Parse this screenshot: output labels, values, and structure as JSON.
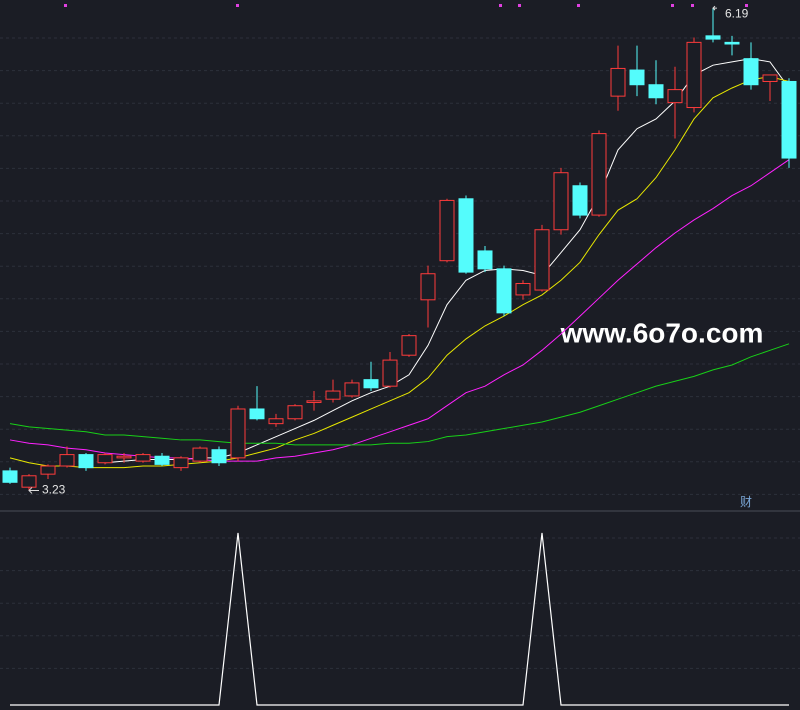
{
  "chart_data": {
    "type": "candlestick",
    "up_color": "#ff3b3b",
    "down_color": "#54fcfc",
    "ylim": [
      3.11,
      6.24
    ],
    "open": [
      3.35,
      3.25,
      3.33,
      3.38,
      3.45,
      3.4,
      3.43,
      3.41,
      3.44,
      3.37,
      3.41,
      3.48,
      3.43,
      3.73,
      3.64,
      3.67,
      3.77,
      3.79,
      3.81,
      3.91,
      3.87,
      4.06,
      4.4,
      4.64,
      5.02,
      4.7,
      4.59,
      4.43,
      4.46,
      4.83,
      5.1,
      4.92,
      5.65,
      5.81,
      5.72,
      5.61,
      5.58,
      6.02,
      5.98,
      5.88,
      5.74,
      5.74
    ],
    "high": [
      3.37,
      3.33,
      3.39,
      3.5,
      3.46,
      3.46,
      3.46,
      3.46,
      3.46,
      3.44,
      3.5,
      3.5,
      3.75,
      3.87,
      3.7,
      3.76,
      3.84,
      3.91,
      3.91,
      4.02,
      4.08,
      4.19,
      4.61,
      5.02,
      5.04,
      4.73,
      4.61,
      4.52,
      4.86,
      5.21,
      5.12,
      5.44,
      5.96,
      5.96,
      5.87,
      5.83,
      6.01,
      6.19,
      6.02,
      5.98,
      5.78,
      5.76
    ],
    "low": [
      3.27,
      3.23,
      3.3,
      3.37,
      3.35,
      3.39,
      3.4,
      3.4,
      3.38,
      3.35,
      3.4,
      3.38,
      3.41,
      3.66,
      3.62,
      3.66,
      3.72,
      3.77,
      3.8,
      3.84,
      3.86,
      4.05,
      4.23,
      4.63,
      4.56,
      4.57,
      4.3,
      4.4,
      4.45,
      4.8,
      4.9,
      4.91,
      5.56,
      5.65,
      5.6,
      5.39,
      5.55,
      5.98,
      5.9,
      5.69,
      5.62,
      5.21
    ],
    "close": [
      3.28,
      3.32,
      3.38,
      3.45,
      3.37,
      3.45,
      3.44,
      3.45,
      3.39,
      3.43,
      3.49,
      3.4,
      3.73,
      3.67,
      3.67,
      3.75,
      3.78,
      3.84,
      3.89,
      3.86,
      4.03,
      4.18,
      4.56,
      5.01,
      4.57,
      4.59,
      4.32,
      4.5,
      4.83,
      5.18,
      4.92,
      5.42,
      5.82,
      5.72,
      5.64,
      5.69,
      5.98,
      6.0,
      5.97,
      5.72,
      5.78,
      5.27
    ],
    "lines": [
      {
        "color": "#ffffff",
        "values": [
          null,
          null,
          null,
          null,
          null,
          3.4,
          3.41,
          3.42,
          3.42,
          3.42,
          3.43,
          3.43,
          3.46,
          3.51,
          3.56,
          3.61,
          3.66,
          3.72,
          3.78,
          3.83,
          3.87,
          3.94,
          4.12,
          4.37,
          4.52,
          4.58,
          4.59,
          4.58,
          4.55,
          4.69,
          4.83,
          5.04,
          5.32,
          5.45,
          5.51,
          5.62,
          5.78,
          5.84,
          5.86,
          5.88,
          5.86,
          5.7
        ]
      },
      {
        "color": "#e8e800",
        "values": [
          3.43,
          3.4,
          3.38,
          3.38,
          3.37,
          3.37,
          3.37,
          3.38,
          3.38,
          3.39,
          3.4,
          3.41,
          3.43,
          3.46,
          3.49,
          3.54,
          3.58,
          3.63,
          3.68,
          3.73,
          3.78,
          3.83,
          3.92,
          4.06,
          4.16,
          4.24,
          4.3,
          4.37,
          4.43,
          4.52,
          4.63,
          4.8,
          4.95,
          5.02,
          5.15,
          5.32,
          5.51,
          5.64,
          5.7,
          5.75,
          5.77,
          5.74
        ]
      },
      {
        "color": "#ff22ff",
        "values": [
          3.54,
          3.52,
          3.51,
          3.49,
          3.48,
          3.46,
          3.45,
          3.44,
          3.43,
          3.43,
          3.42,
          3.41,
          3.41,
          3.41,
          3.43,
          3.44,
          3.46,
          3.48,
          3.51,
          3.55,
          3.59,
          3.63,
          3.67,
          3.75,
          3.83,
          3.87,
          3.94,
          4.0,
          4.09,
          4.19,
          4.3,
          4.41,
          4.52,
          4.62,
          4.72,
          4.81,
          4.89,
          4.96,
          5.04,
          5.1,
          5.18,
          5.26
        ]
      },
      {
        "color": "#18d018",
        "values": [
          3.64,
          3.62,
          3.61,
          3.6,
          3.59,
          3.57,
          3.57,
          3.56,
          3.55,
          3.54,
          3.54,
          3.53,
          3.52,
          3.52,
          3.52,
          3.51,
          3.51,
          3.51,
          3.51,
          3.51,
          3.52,
          3.52,
          3.53,
          3.56,
          3.57,
          3.59,
          3.61,
          3.63,
          3.65,
          3.68,
          3.71,
          3.75,
          3.79,
          3.83,
          3.87,
          3.9,
          3.93,
          3.97,
          4.0,
          4.05,
          4.09,
          4.13
        ]
      }
    ],
    "high_label": "6.19",
    "low_label": "3.23",
    "watermark": "www.6o7o.com",
    "corner_label": "财",
    "indicator": {
      "color": "#ffffff",
      "ylim": [
        0,
        1
      ],
      "values": [
        0,
        0,
        0,
        0,
        0,
        0,
        0,
        0,
        0,
        0,
        0,
        0,
        1,
        0,
        0,
        0,
        0,
        0,
        0,
        0,
        0,
        0,
        0,
        0,
        0,
        0,
        0,
        0,
        1,
        0,
        0,
        0,
        0,
        0,
        0,
        0,
        0,
        0,
        0,
        0,
        0,
        0
      ]
    }
  }
}
